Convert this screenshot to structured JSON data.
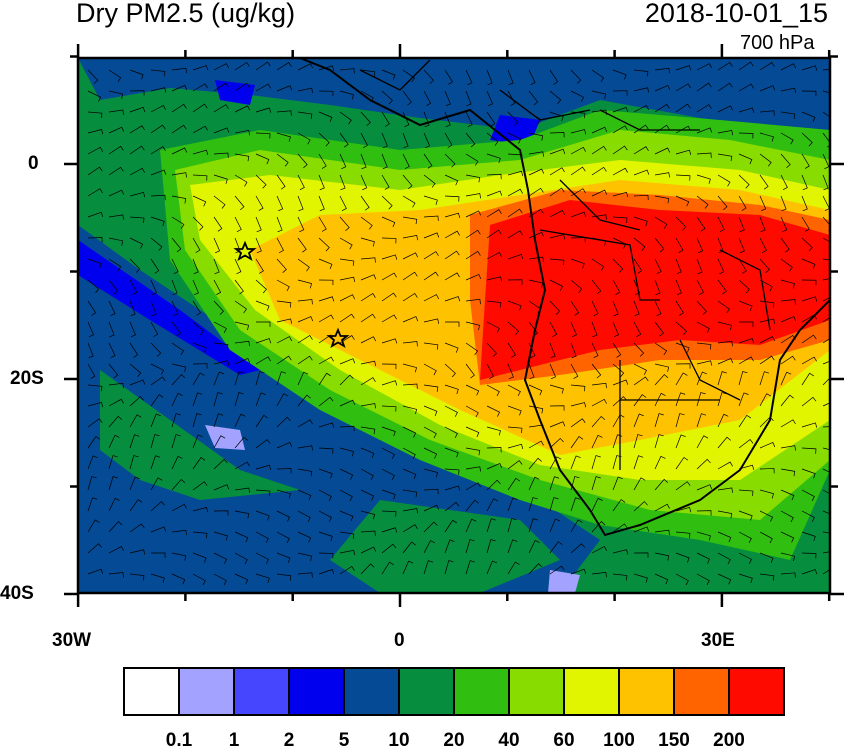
{
  "header": {
    "title": "Dry PM2.5 (ug/kg)",
    "timestamp": "2018-10-01_15",
    "level": "700 hPa"
  },
  "chart_data": {
    "type": "heatmap",
    "title": "Dry PM2.5 (ug/kg)",
    "subtitle": "2018-10-01_15",
    "level": "700 hPa",
    "lon_range": [
      -30,
      40
    ],
    "lat_range": [
      -40,
      10
    ],
    "x_ticks": [
      {
        "value": -30,
        "label": "30W"
      },
      {
        "value": 0,
        "label": "0"
      },
      {
        "value": 30,
        "label": "30E"
      }
    ],
    "y_ticks": [
      {
        "value": 0,
        "label": "0"
      },
      {
        "value": -20,
        "label": "20S"
      },
      {
        "value": -40,
        "label": "40S"
      }
    ],
    "colorbar": {
      "levels": [
        "0.1",
        "1",
        "2",
        "5",
        "10",
        "20",
        "40",
        "60",
        "100",
        "150",
        "200"
      ],
      "colors": [
        "#ffffff",
        "#a3a3ff",
        "#4646ff",
        "#0000ee",
        "#044a94",
        "#068e3e",
        "#30be10",
        "#88dc00",
        "#e2f500",
        "#ffc200",
        "#ff6400",
        "#ff0a00"
      ]
    },
    "overlays": [
      "wind barbs",
      "coastlines",
      "country borders"
    ],
    "markers": [
      {
        "type": "star",
        "lon": -14.5,
        "lat": -8
      },
      {
        "type": "star",
        "lon": -6,
        "lat": -16
      }
    ]
  }
}
